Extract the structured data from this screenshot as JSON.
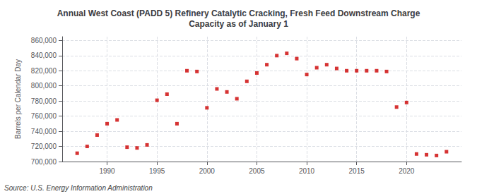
{
  "chart_data": {
    "type": "scatter",
    "title": "Annual West Coast (PADD 5) Refinery Catalytic Cracking, Fresh Feed Downstream Charge\nCapacity as of January 1",
    "ylabel": "Barrels per Calendar Day",
    "annotations": [
      "Source: U.S. Energy Information Administration"
    ],
    "color": "#cc0000",
    "marker": "square",
    "grid": true,
    "xlim": [
      1985.5,
      2025.5
    ],
    "xticks": [
      1990,
      1995,
      2000,
      2005,
      2010,
      2015,
      2020
    ],
    "ylim": [
      700000,
      865000
    ],
    "yticks": [
      {
        "value": 700000,
        "label": "700,000"
      },
      {
        "value": 720000,
        "label": "720,000"
      },
      {
        "value": 740000,
        "label": "740,000"
      },
      {
        "value": 760000,
        "label": "760,000"
      },
      {
        "value": 780000,
        "label": "780,000"
      },
      {
        "value": 800000,
        "label": "800,000"
      },
      {
        "value": 820000,
        "label": "820,000"
      },
      {
        "value": 840000,
        "label": "840,000"
      },
      {
        "value": 860000,
        "label": "860,000"
      }
    ],
    "x": [
      1987,
      1988,
      1989,
      1990,
      1991,
      1992,
      1993,
      1994,
      1995,
      1996,
      1997,
      1998,
      1999,
      2000,
      2001,
      2002,
      2003,
      2004,
      2005,
      2006,
      2007,
      2008,
      2009,
      2010,
      2011,
      2012,
      2013,
      2014,
      2015,
      2016,
      2017,
      2018,
      2019,
      2020,
      2021,
      2022,
      2023,
      2024
    ],
    "values": [
      711000,
      720000,
      735000,
      750000,
      755000,
      719000,
      718000,
      722000,
      781000,
      789000,
      750000,
      820000,
      819000,
      771000,
      796000,
      792000,
      783000,
      806000,
      817000,
      828000,
      840000,
      843000,
      836000,
      815000,
      824000,
      828000,
      823000,
      820000,
      820000,
      820000,
      820000,
      819000,
      772000,
      778000,
      710000,
      709000,
      708000,
      713000
    ]
  }
}
